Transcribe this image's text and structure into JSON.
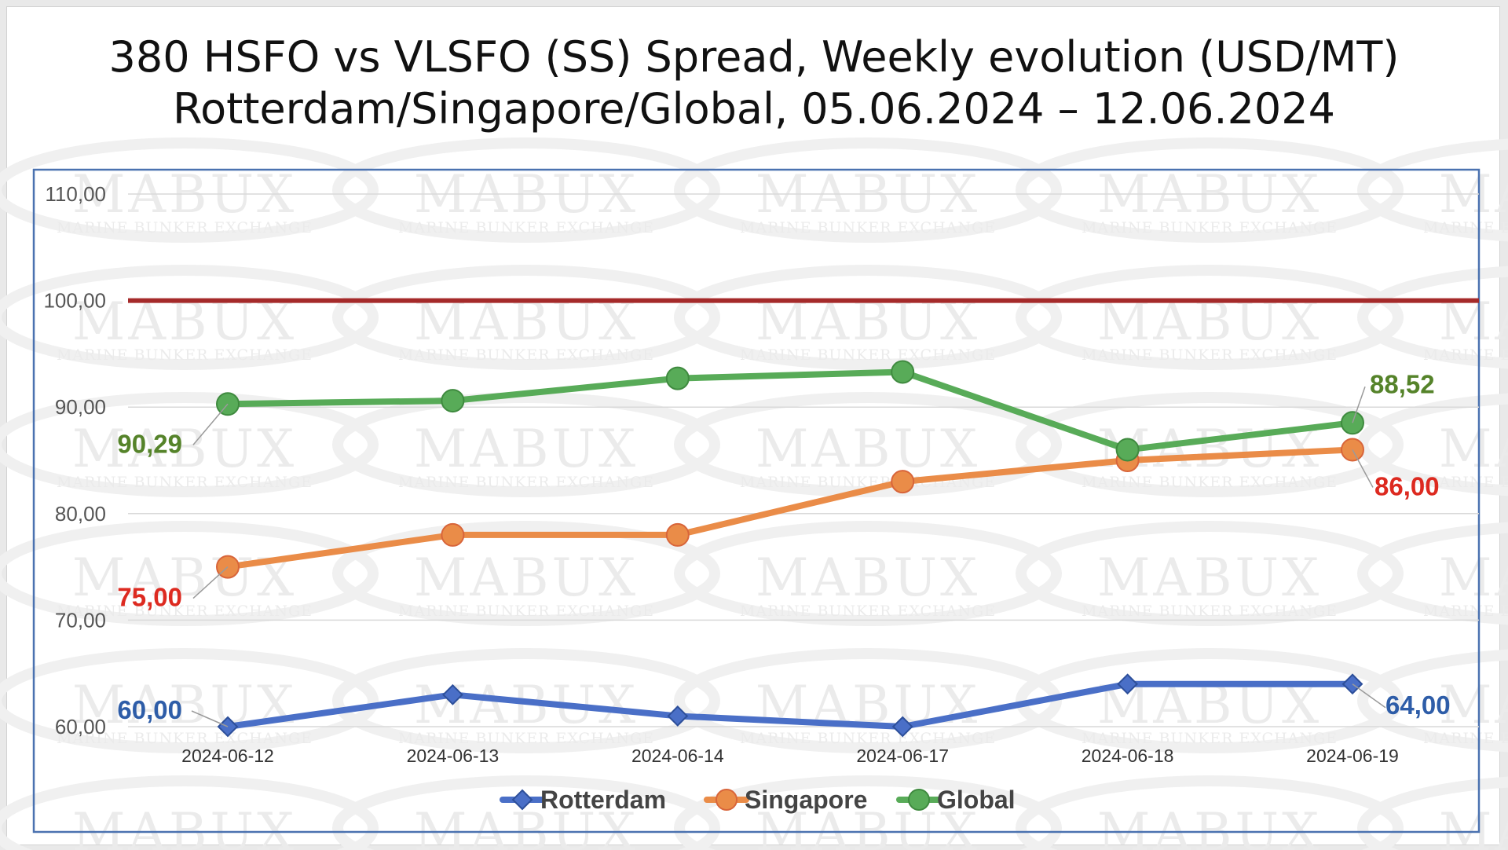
{
  "title_line1": "380 HSFO vs VLSFO (SS) Spread, Weekly evolution (USD/MT)",
  "title_line2": "Rotterdam/Singapore/Global, 05.06.2024 – 12.06.2024",
  "watermark": {
    "brand": "MABUX",
    "tagline": "MARINE BUNKER EXCHANGE"
  },
  "chart_data": {
    "type": "line",
    "title": "380 HSFO vs VLSFO (SS) Spread, Weekly evolution (USD/MT)",
    "subtitle": "Rotterdam/Singapore/Global, 05.06.2024 – 12.06.2024",
    "categories": [
      "2024-06-12",
      "2024-06-13",
      "2024-06-14",
      "2024-06-17",
      "2024-06-18",
      "2024-06-19"
    ],
    "ylim": [
      60,
      110
    ],
    "y_ticks": [
      "60,00",
      "70,00",
      "80,00",
      "90,00",
      "100,00",
      "110,00"
    ],
    "y_tick_values": [
      60,
      70,
      80,
      90,
      100,
      110
    ],
    "reference_line": {
      "value": 100,
      "color": "#a52a2a"
    },
    "series": [
      {
        "name": "Rotterdam",
        "color": "#4a6fc7",
        "label_color": "#2e5da8",
        "marker": "diamond",
        "values": [
          60,
          63,
          61,
          60,
          64,
          64
        ],
        "start_label": "60,00",
        "end_label": "64,00"
      },
      {
        "name": "Singapore",
        "color": "#ea8c48",
        "label_color": "#dd2a20",
        "marker": "circle",
        "values": [
          75,
          78,
          78,
          83,
          85,
          86
        ],
        "start_label": "75,00",
        "end_label": "86,00"
      },
      {
        "name": "Global",
        "color": "#58ab58",
        "label_color": "#55832a",
        "marker": "circle",
        "values": [
          90.29,
          90.6,
          92.7,
          93.3,
          86,
          88.52
        ],
        "start_label": "90,29",
        "end_label": "88,52"
      }
    ],
    "legend": [
      "Rotterdam",
      "Singapore",
      "Global"
    ],
    "legend_position": "bottom",
    "grid": true
  }
}
